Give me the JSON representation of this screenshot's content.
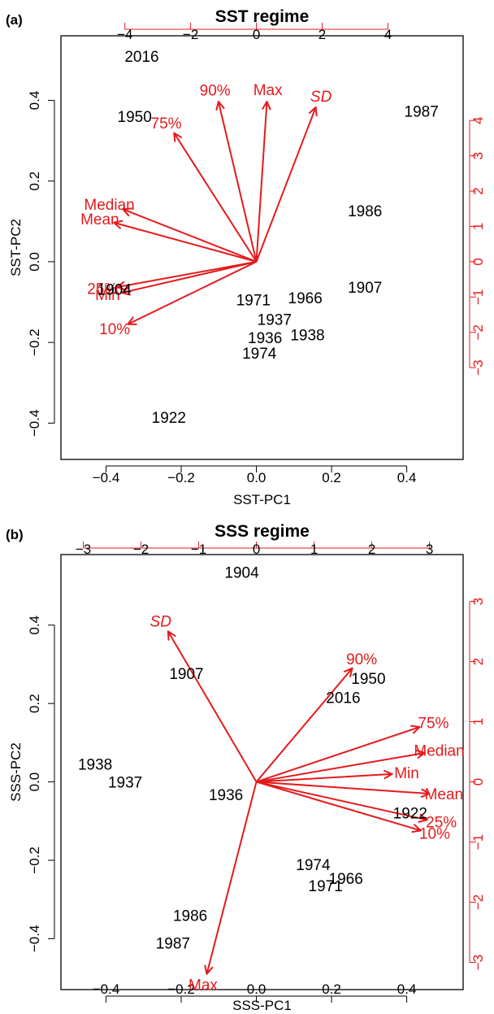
{
  "figure": {
    "panels": [
      "a",
      "b"
    ]
  },
  "colors": {
    "loadings": "#e41a1c",
    "scores": "#000000"
  },
  "chart_data": [
    {
      "type": "scatter",
      "panel_label": "(a)",
      "title": "SST regime",
      "xlabel": "SST-PC1",
      "ylabel": "SST-PC2",
      "xlim": [
        -0.52,
        0.55
      ],
      "ylim": [
        -0.49,
        0.56
      ],
      "xticks": [
        -0.4,
        -0.2,
        0.0,
        0.2,
        0.4
      ],
      "xtick_labels": [
        "−0.4",
        "−0.2",
        "0.0",
        "0.2",
        "0.4"
      ],
      "yticks": [
        -0.4,
        -0.2,
        0.0,
        0.2,
        0.4
      ],
      "ytick_labels": [
        "−0.4",
        "−0.2",
        "0.0",
        "0.2",
        "0.4"
      ],
      "top_ticks": [
        -4,
        -2,
        0,
        2,
        4
      ],
      "top_tick_labels": [
        "−4",
        "−2",
        "0",
        "2",
        "4"
      ],
      "right_ticks": [
        -3,
        -2,
        -1,
        0,
        1,
        2,
        3,
        4
      ],
      "right_tick_labels": [
        "−3",
        "−2",
        "−1",
        "0",
        "1",
        "2",
        "3",
        "4"
      ],
      "secondary_scale": 0.0875,
      "grid": false,
      "points": [
        {
          "label": "2016",
          "x": -0.305,
          "y": 0.51
        },
        {
          "label": "1950",
          "x": -0.324,
          "y": 0.36
        },
        {
          "label": "1987",
          "x": 0.439,
          "y": 0.374
        },
        {
          "label": "1986",
          "x": 0.289,
          "y": 0.127
        },
        {
          "label": "1904",
          "x": -0.378,
          "y": -0.068
        },
        {
          "label": "1907",
          "x": 0.289,
          "y": -0.063
        },
        {
          "label": "1971",
          "x": -0.008,
          "y": -0.094
        },
        {
          "label": "1966",
          "x": 0.13,
          "y": -0.089
        },
        {
          "label": "1937",
          "x": 0.048,
          "y": -0.142
        },
        {
          "label": "1936",
          "x": 0.023,
          "y": -0.188
        },
        {
          "label": "1938",
          "x": 0.136,
          "y": -0.181
        },
        {
          "label": "1974",
          "x": 0.008,
          "y": -0.226
        },
        {
          "label": "1922",
          "x": -0.233,
          "y": -0.385
        }
      ],
      "loadings": [
        {
          "name": "90%",
          "x": -0.101,
          "y": 0.397,
          "italic": false
        },
        {
          "name": "Max",
          "x": 0.028,
          "y": 0.397,
          "italic": false
        },
        {
          "name": "SD",
          "x": 0.158,
          "y": 0.383,
          "italic": true
        },
        {
          "name": "75%",
          "x": -0.219,
          "y": 0.319,
          "italic": false
        },
        {
          "name": "Median",
          "x": -0.355,
          "y": 0.13,
          "italic": false
        },
        {
          "name": "Mean",
          "x": -0.379,
          "y": 0.097,
          "italic": false
        },
        {
          "name": "25%",
          "x": -0.371,
          "y": -0.063,
          "italic": false
        },
        {
          "name": "Min",
          "x": -0.358,
          "y": -0.077,
          "italic": false
        },
        {
          "name": "10%",
          "x": -0.342,
          "y": -0.155,
          "italic": false
        }
      ]
    },
    {
      "type": "scatter",
      "panel_label": "(b)",
      "title": "SSS regime",
      "xlabel": "SSS-PC1",
      "ylabel": "SSS-PC2",
      "xlim": [
        -0.52,
        0.55
      ],
      "ylim": [
        -0.53,
        0.58
      ],
      "xticks": [
        -0.4,
        -0.2,
        0.0,
        0.2,
        0.4
      ],
      "xtick_labels": [
        "−0.4",
        "−0.2",
        "0.0",
        "0.2",
        "0.4"
      ],
      "yticks": [
        -0.4,
        -0.2,
        0.0,
        0.2,
        0.4
      ],
      "ytick_labels": [
        "−0.4",
        "−0.2",
        "0.0",
        "0.2",
        "0.4"
      ],
      "top_ticks": [
        -3,
        -2,
        -1,
        0,
        1,
        2,
        3
      ],
      "top_tick_labels": [
        "−3",
        "−2",
        "−1",
        "0",
        "1",
        "2",
        "3"
      ],
      "right_ticks": [
        -3,
        -2,
        -1,
        0,
        1,
        2,
        3
      ],
      "right_tick_labels": [
        "−3",
        "−2",
        "−1",
        "0",
        "1",
        "2",
        "3"
      ],
      "secondary_scale": 0.1535,
      "grid": false,
      "points": [
        {
          "label": "1904",
          "x": -0.039,
          "y": 0.535
        },
        {
          "label": "1907",
          "x": -0.186,
          "y": 0.277
        },
        {
          "label": "1950",
          "x": 0.298,
          "y": 0.265
        },
        {
          "label": "2016",
          "x": 0.231,
          "y": 0.216
        },
        {
          "label": "1938",
          "x": -0.429,
          "y": 0.046
        },
        {
          "label": "1937",
          "x": -0.349,
          "y": 0.0
        },
        {
          "label": "1936",
          "x": -0.081,
          "y": -0.032
        },
        {
          "label": "1922",
          "x": 0.409,
          "y": -0.079
        },
        {
          "label": "1974",
          "x": 0.151,
          "y": -0.211
        },
        {
          "label": "1966",
          "x": 0.238,
          "y": -0.246
        },
        {
          "label": "1971",
          "x": 0.184,
          "y": -0.264
        },
        {
          "label": "1986",
          "x": -0.176,
          "y": -0.34
        },
        {
          "label": "1987",
          "x": -0.222,
          "y": -0.411
        }
      ],
      "loadings": [
        {
          "name": "SD",
          "x": -0.235,
          "y": 0.384,
          "italic": true
        },
        {
          "name": "90%",
          "x": 0.255,
          "y": 0.29,
          "italic": false
        },
        {
          "name": "75%",
          "x": 0.434,
          "y": 0.14,
          "italic": false
        },
        {
          "name": "Median",
          "x": 0.448,
          "y": 0.074,
          "italic": false
        },
        {
          "name": "Min",
          "x": 0.361,
          "y": 0.02,
          "italic": false
        },
        {
          "name": "Mean",
          "x": 0.46,
          "y": -0.03,
          "italic": false
        },
        {
          "name": "25%",
          "x": 0.454,
          "y": -0.097,
          "italic": false
        },
        {
          "name": "10%",
          "x": 0.437,
          "y": -0.124,
          "italic": false
        },
        {
          "name": "Max",
          "x": -0.132,
          "y": -0.49,
          "italic": false
        }
      ]
    }
  ]
}
